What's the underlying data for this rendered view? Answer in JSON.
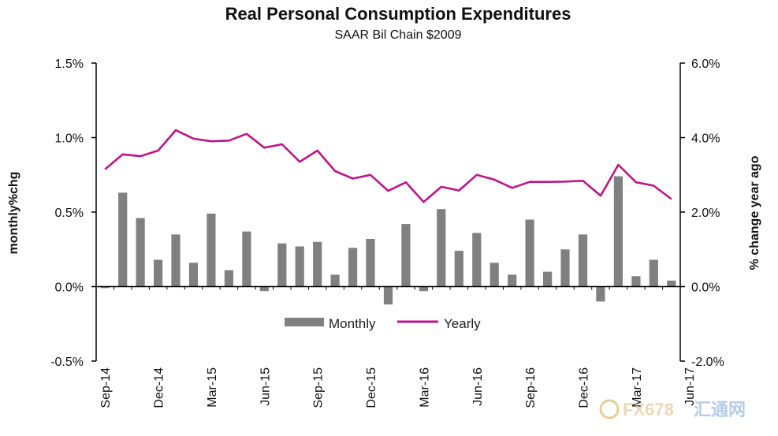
{
  "chart_data": {
    "type": "bar+line",
    "title": "Real Personal Consumption  Expenditures",
    "subtitle": "SAAR Bil Chain $2009",
    "y_left_label": "monthly%chg",
    "y_right_label": "% change year ago",
    "y_left_range": [
      -0.5,
      1.5
    ],
    "y_right_range": [
      -2.0,
      6.0
    ],
    "y_left_ticks": [
      "1.5%",
      "1.0%",
      "0.5%",
      "0.0%",
      "-0.5%"
    ],
    "y_left_tick_values": [
      1.5,
      1.0,
      0.5,
      0.0,
      -0.5
    ],
    "y_right_ticks": [
      "6.0%",
      "4.0%",
      "2.0%",
      "0.0%",
      "-2.0%"
    ],
    "y_right_tick_values": [
      6.0,
      4.0,
      2.0,
      0.0,
      -2.0
    ],
    "x_tick_labels": [
      "Sep-14",
      "Dec-14",
      "Mar-15",
      "Jun-15",
      "Sep-15",
      "Dec-15",
      "Mar-16",
      "Jun-16",
      "Sep-16",
      "Dec-16",
      "Mar-17",
      "Jun-17"
    ],
    "x_tick_index": [
      0,
      3,
      6,
      9,
      12,
      15,
      18,
      21,
      24,
      27,
      30,
      33
    ],
    "legend": {
      "placement": "bottom-center",
      "items": [
        "Monthly",
        "Yearly"
      ]
    },
    "series": [
      {
        "name": "Monthly",
        "axis": "left",
        "kind": "bar",
        "color": "#808080",
        "values": [
          -0.01,
          0.63,
          0.46,
          0.18,
          0.35,
          0.16,
          0.49,
          0.11,
          0.37,
          -0.03,
          0.29,
          0.27,
          0.3,
          0.08,
          0.26,
          0.32,
          -0.12,
          0.42,
          -0.03,
          0.52,
          0.24,
          0.36,
          0.16,
          0.08,
          0.45,
          0.1,
          0.25,
          0.35,
          -0.1,
          0.74,
          0.07,
          0.18,
          0.04
        ]
      },
      {
        "name": "Yearly",
        "axis": "right",
        "kind": "line",
        "color": "#c0138a",
        "values": [
          3.15,
          3.55,
          3.5,
          3.65,
          4.2,
          3.97,
          3.9,
          3.92,
          4.1,
          3.73,
          3.82,
          3.35,
          3.65,
          3.1,
          2.9,
          3.0,
          2.57,
          2.8,
          2.27,
          2.68,
          2.58,
          3.0,
          2.87,
          2.65,
          2.81,
          2.81,
          2.82,
          2.84,
          2.44,
          3.27,
          2.8,
          2.71,
          2.35
        ]
      }
    ]
  },
  "watermark": {
    "text_latin": "FX678",
    "text_cjk": "汇通网"
  },
  "colors": {
    "bar": "#808080",
    "line": "#c0138a",
    "axis": "#000000"
  }
}
